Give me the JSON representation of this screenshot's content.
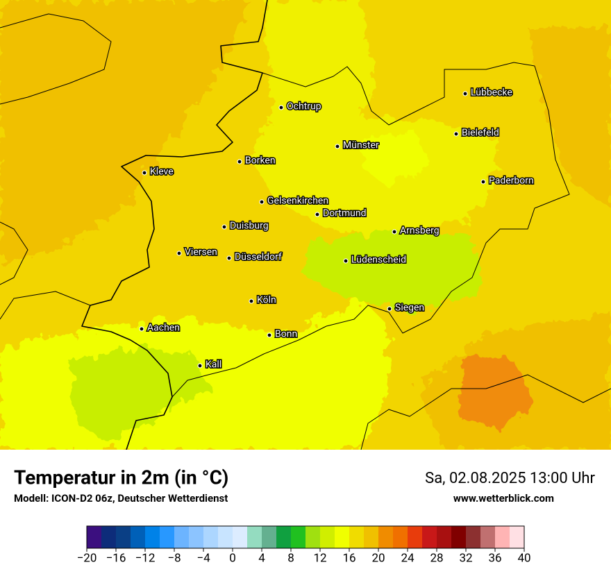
{
  "map": {
    "cities": [
      "Lübbecke",
      "Ochtrup",
      "Bielefeld",
      "Münster",
      "Borken",
      "Kleve",
      "Paderborn",
      "Gelsenkirchen",
      "Dortmund",
      "Duisburg",
      "Arnsberg",
      "Viersen",
      "Düsseldorf",
      "Lüdenscheid",
      "Köln",
      "Siegen",
      "Aachen",
      "Bonn",
      "Kall"
    ]
  },
  "footer": {
    "title": "Temperatur in 2m (in °C)",
    "subtitle": "Modell: ICON-D2 06z, Deutscher Wetterdienst",
    "datetime": "Sa, 02.08.2025 13:00 Uhr",
    "website": "www.wetterblick.com"
  },
  "colorbar": {
    "lim": [
      -20,
      40
    ],
    "ticks": [
      {
        "value": -20,
        "label": "−20"
      },
      {
        "value": -16,
        "label": "−16"
      },
      {
        "value": -12,
        "label": "−12"
      },
      {
        "value": -8,
        "label": "−8"
      },
      {
        "value": -4,
        "label": "−4"
      },
      0,
      4,
      8,
      12,
      16,
      20,
      24,
      28,
      32,
      36,
      40
    ],
    "colors": [
      "#3b0f7f",
      "#0d2c7a",
      "#0a3f85",
      "#0060b8",
      "#0082e8",
      "#2898ff",
      "#6cb4ff",
      "#8cc4ff",
      "#acd6ff",
      "#c8e4ff",
      "#dcecff",
      "#94dcc0",
      "#64b090",
      "#10a040",
      "#20c020",
      "#a0e010",
      "#d0ee00",
      "#f0ff00",
      "#f0dc00",
      "#f0c000",
      "#f08c00",
      "#f07000",
      "#e83c0c",
      "#c81818",
      "#a81010",
      "#800000",
      "#8c3030",
      "#c07070",
      "#ffb4b4",
      "#ffe0e4"
    ]
  }
}
